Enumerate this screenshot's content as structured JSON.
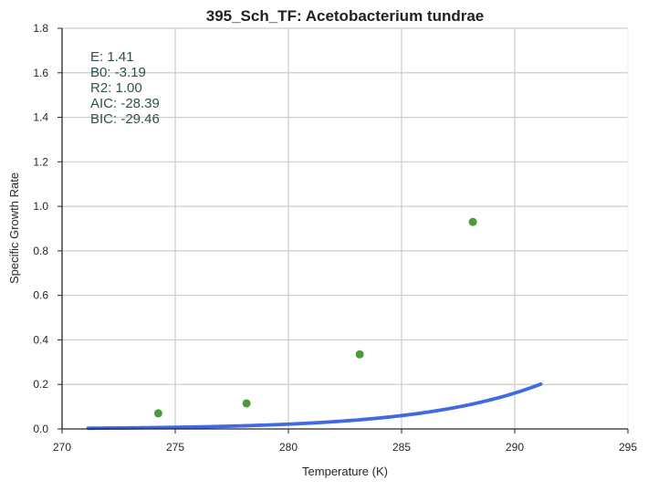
{
  "chart_data": {
    "type": "scatter",
    "title": "395_Sch_TF: Acetobacterium tundrae",
    "xlabel": "Temperature (K)",
    "ylabel": "Specific Growth Rate",
    "xlim": [
      270,
      295
    ],
    "ylim": [
      0.0,
      1.8
    ],
    "xticks": [
      "270",
      "275",
      "280",
      "285",
      "290",
      "295"
    ],
    "yticks": [
      "0.0",
      "0.2",
      "0.4",
      "0.6",
      "0.8",
      "1.0",
      "1.2",
      "1.4",
      "1.6",
      "1.8"
    ],
    "grid": true,
    "series": [
      {
        "kind": "points",
        "x": [
          274.25,
          278.15,
          283.15,
          288.15
        ],
        "y": [
          0.07,
          0.115,
          0.335,
          0.93
        ]
      },
      {
        "kind": "fitted-curve",
        "x_range": [
          271.15,
          291.15
        ],
        "E": 1.41,
        "B0": -3.19
      }
    ],
    "annotations": [
      "E:  1.41",
      "B0:  -3.19",
      "R2:  1.00",
      "AIC: -28.39",
      "BIC: -29.46"
    ],
    "colors": {
      "points": "#4c9a3c",
      "curve": "#4169e1",
      "grid": "#cccccc",
      "axis": "#262626",
      "annotation": "#2f4f4f"
    }
  }
}
